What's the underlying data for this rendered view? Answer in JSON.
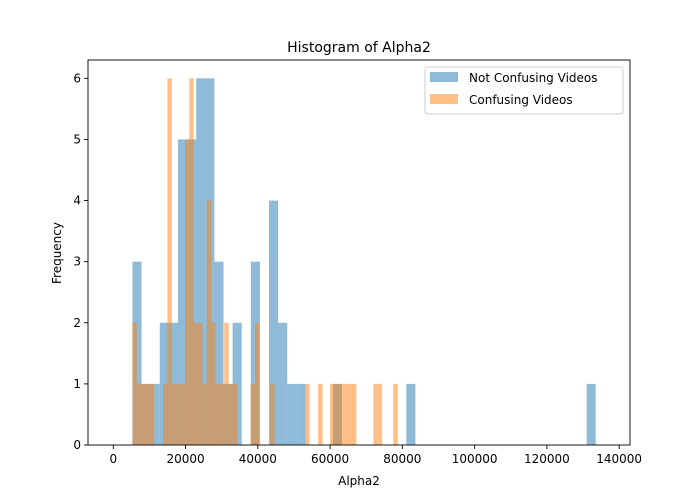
{
  "chart_data": {
    "type": "histogram",
    "title": "Histogram of Alpha2",
    "xlabel": "Alpha2",
    "ylabel": "Frequency",
    "xlim": [
      -7000,
      143000
    ],
    "ylim": [
      0,
      6.3
    ],
    "xticks": [
      0,
      20000,
      40000,
      60000,
      80000,
      100000,
      120000,
      140000
    ],
    "xtick_labels": [
      "0",
      "20000",
      "40000",
      "60000",
      "80000",
      "100000",
      "120000",
      "140000"
    ],
    "yticks": [
      0,
      1,
      2,
      3,
      4,
      5,
      6
    ],
    "ytick_labels": [
      "0",
      "1",
      "2",
      "3",
      "4",
      "5",
      "6"
    ],
    "legend_position": "top-right",
    "series": [
      {
        "name": "Not Confusing Videos",
        "color": "#1f77b4",
        "alpha": 0.5,
        "bin_width": 2520,
        "bins": [
          {
            "x0": 5300,
            "count": 3
          },
          {
            "x0": 7820,
            "count": 1
          },
          {
            "x0": 10340,
            "count": 1
          },
          {
            "x0": 12860,
            "count": 2
          },
          {
            "x0": 15380,
            "count": 2
          },
          {
            "x0": 17900,
            "count": 5
          },
          {
            "x0": 20420,
            "count": 5
          },
          {
            "x0": 22940,
            "count": 6
          },
          {
            "x0": 25460,
            "count": 6
          },
          {
            "x0": 27980,
            "count": 3
          },
          {
            "x0": 30500,
            "count": 1
          },
          {
            "x0": 33020,
            "count": 2
          },
          {
            "x0": 38060,
            "count": 3
          },
          {
            "x0": 43100,
            "count": 4
          },
          {
            "x0": 45620,
            "count": 2
          },
          {
            "x0": 48140,
            "count": 1
          },
          {
            "x0": 50660,
            "count": 1
          },
          {
            "x0": 60740,
            "count": 1
          },
          {
            "x0": 81100,
            "count": 1
          },
          {
            "x0": 131000,
            "count": 1
          }
        ]
      },
      {
        "name": "Confusing Videos",
        "color": "#ff7f0e",
        "alpha": 0.5,
        "bin_width": 1210,
        "bins": [
          {
            "x0": 5300,
            "count": 2
          },
          {
            "x0": 6510,
            "count": 1
          },
          {
            "x0": 7720,
            "count": 1
          },
          {
            "x0": 8930,
            "count": 1
          },
          {
            "x0": 10140,
            "count": 1
          },
          {
            "x0": 13770,
            "count": 1
          },
          {
            "x0": 14980,
            "count": 6
          },
          {
            "x0": 16190,
            "count": 1
          },
          {
            "x0": 17400,
            "count": 1
          },
          {
            "x0": 18610,
            "count": 1
          },
          {
            "x0": 19820,
            "count": 5
          },
          {
            "x0": 21030,
            "count": 6
          },
          {
            "x0": 22240,
            "count": 2
          },
          {
            "x0": 23450,
            "count": 2
          },
          {
            "x0": 24660,
            "count": 1
          },
          {
            "x0": 25870,
            "count": 4
          },
          {
            "x0": 27080,
            "count": 2
          },
          {
            "x0": 28290,
            "count": 1
          },
          {
            "x0": 29500,
            "count": 1
          },
          {
            "x0": 30710,
            "count": 2
          },
          {
            "x0": 31920,
            "count": 1
          },
          {
            "x0": 33130,
            "count": 1
          },
          {
            "x0": 38000,
            "count": 1
          },
          {
            "x0": 39210,
            "count": 2
          },
          {
            "x0": 43400,
            "count": 1
          },
          {
            "x0": 53100,
            "count": 1
          },
          {
            "x0": 56700,
            "count": 1
          },
          {
            "x0": 60000,
            "count": 1
          },
          {
            "x0": 61210,
            "count": 1
          },
          {
            "x0": 62420,
            "count": 1
          },
          {
            "x0": 63630,
            "count": 1
          },
          {
            "x0": 64840,
            "count": 1
          },
          {
            "x0": 66050,
            "count": 1
          },
          {
            "x0": 72000,
            "count": 1
          },
          {
            "x0": 73210,
            "count": 1
          },
          {
            "x0": 77500,
            "count": 1
          }
        ]
      }
    ]
  }
}
